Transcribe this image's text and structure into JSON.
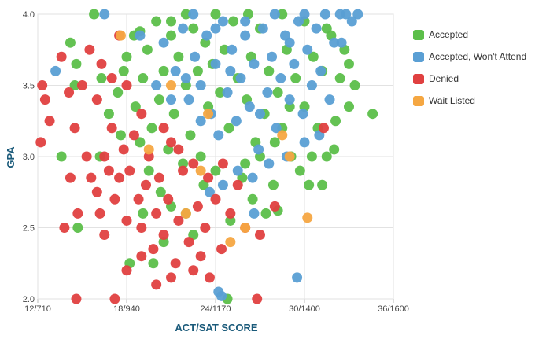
{
  "chart_data": {
    "type": "scatter",
    "title": "",
    "xlabel": "ACT/SAT SCORE",
    "ylabel": "GPA",
    "x_ticks": [
      {
        "value": 12,
        "label": "12/710"
      },
      {
        "value": 18,
        "label": "18/940"
      },
      {
        "value": 24,
        "label": "24/1170"
      },
      {
        "value": 30,
        "label": "30/1400"
      },
      {
        "value": 36,
        "label": "36/1600"
      }
    ],
    "y_ticks": [
      {
        "value": 2.0,
        "label": "2.0"
      },
      {
        "value": 2.5,
        "label": "2.5"
      },
      {
        "value": 3.0,
        "label": "3.0"
      },
      {
        "value": 3.5,
        "label": "3.5"
      },
      {
        "value": 4.0,
        "label": "4.0"
      }
    ],
    "xlim": [
      12,
      36
    ],
    "ylim": [
      2.0,
      4.0
    ],
    "grid": true,
    "legend_position": "right",
    "series": [
      {
        "name": "Accepted",
        "color": "#5cbf4a",
        "points": [
          [
            15.8,
            4.0
          ],
          [
            14.2,
            3.8
          ],
          [
            14.6,
            3.65
          ],
          [
            16.3,
            3.55
          ],
          [
            14.5,
            3.5
          ],
          [
            13.6,
            3.0
          ],
          [
            14.7,
            2.5
          ],
          [
            16.2,
            3.0
          ],
          [
            16.8,
            3.3
          ],
          [
            17.4,
            3.45
          ],
          [
            17.8,
            3.6
          ],
          [
            18.0,
            3.7
          ],
          [
            18.5,
            3.85
          ],
          [
            18.6,
            3.35
          ],
          [
            18.9,
            3.1
          ],
          [
            19.1,
            3.55
          ],
          [
            19.4,
            3.75
          ],
          [
            19.7,
            3.2
          ],
          [
            20.0,
            3.95
          ],
          [
            20.2,
            3.4
          ],
          [
            20.5,
            3.6
          ],
          [
            20.8,
            3.05
          ],
          [
            21.0,
            3.85
          ],
          [
            21.2,
            3.3
          ],
          [
            21.5,
            3.7
          ],
          [
            21.8,
            2.95
          ],
          [
            22.0,
            3.5
          ],
          [
            22.3,
            3.15
          ],
          [
            22.5,
            3.9
          ],
          [
            22.8,
            3.6
          ],
          [
            23.0,
            3.0
          ],
          [
            23.3,
            3.8
          ],
          [
            23.5,
            3.35
          ],
          [
            23.8,
            3.65
          ],
          [
            24.0,
            2.9
          ],
          [
            24.3,
            3.45
          ],
          [
            24.6,
            3.75
          ],
          [
            24.9,
            3.2
          ],
          [
            25.2,
            3.95
          ],
          [
            25.5,
            3.55
          ],
          [
            25.8,
            2.85
          ],
          [
            26.1,
            3.4
          ],
          [
            26.4,
            3.7
          ],
          [
            26.7,
            3.1
          ],
          [
            27.0,
            3.9
          ],
          [
            27.3,
            3.3
          ],
          [
            27.6,
            3.6
          ],
          [
            27.9,
            2.8
          ],
          [
            28.2,
            3.45
          ],
          [
            28.5,
            3.2
          ],
          [
            28.8,
            3.75
          ],
          [
            29.1,
            3.0
          ],
          [
            29.4,
            3.55
          ],
          [
            29.7,
            2.9
          ],
          [
            30.0,
            3.35
          ],
          [
            30.3,
            2.8
          ],
          [
            30.6,
            3.7
          ],
          [
            30.9,
            3.2
          ],
          [
            31.2,
            3.6
          ],
          [
            31.5,
            3.0
          ],
          [
            31.8,
            3.85
          ],
          [
            32.1,
            3.25
          ],
          [
            32.4,
            3.55
          ],
          [
            32.7,
            3.75
          ],
          [
            33.0,
            3.35
          ],
          [
            33.4,
            3.5
          ],
          [
            34.6,
            3.3
          ],
          [
            22.0,
            2.6
          ],
          [
            21.0,
            2.65
          ],
          [
            20.5,
            2.4
          ],
          [
            25.0,
            2.55
          ],
          [
            24.8,
            2.0
          ],
          [
            26.5,
            2.7
          ],
          [
            27.4,
            2.6
          ],
          [
            28.2,
            2.62
          ],
          [
            19.5,
            2.9
          ],
          [
            20.3,
            2.75
          ],
          [
            22.5,
            2.45
          ],
          [
            23.2,
            2.8
          ],
          [
            26.0,
            2.95
          ],
          [
            27.0,
            3.0
          ],
          [
            28.0,
            3.1
          ],
          [
            29.0,
            3.35
          ],
          [
            30.5,
            3.0
          ],
          [
            31.2,
            2.8
          ],
          [
            32.0,
            3.05
          ],
          [
            33.0,
            3.65
          ],
          [
            31.5,
            3.9
          ],
          [
            30.0,
            3.95
          ],
          [
            28.5,
            4.0
          ],
          [
            26.2,
            4.0
          ],
          [
            24.0,
            4.0
          ],
          [
            22.0,
            4.0
          ],
          [
            21.0,
            3.95
          ],
          [
            19.8,
            2.25
          ],
          [
            18.2,
            2.25
          ],
          [
            18.9,
            3.88
          ],
          [
            17.6,
            3.15
          ],
          [
            19.1,
            2.6
          ]
        ]
      },
      {
        "name": "Accepted, Won't Attend",
        "color": "#5a9fd4",
        "points": [
          [
            16.5,
            4.0
          ],
          [
            13.2,
            3.6
          ],
          [
            18.9,
            3.85
          ],
          [
            20.5,
            3.8
          ],
          [
            21.3,
            3.6
          ],
          [
            21.8,
            3.9
          ],
          [
            22.2,
            3.4
          ],
          [
            22.6,
            3.7
          ],
          [
            23.0,
            3.5
          ],
          [
            23.4,
            3.85
          ],
          [
            23.7,
            3.3
          ],
          [
            24.0,
            3.65
          ],
          [
            24.2,
            3.15
          ],
          [
            24.5,
            3.95
          ],
          [
            24.8,
            3.45
          ],
          [
            25.1,
            3.75
          ],
          [
            25.4,
            3.25
          ],
          [
            25.7,
            3.55
          ],
          [
            26.0,
            3.85
          ],
          [
            26.3,
            3.35
          ],
          [
            26.6,
            3.65
          ],
          [
            26.9,
            3.05
          ],
          [
            27.2,
            3.9
          ],
          [
            27.5,
            3.45
          ],
          [
            27.8,
            3.7
          ],
          [
            28.1,
            3.2
          ],
          [
            28.4,
            3.55
          ],
          [
            28.7,
            3.85
          ],
          [
            29.0,
            3.4
          ],
          [
            29.3,
            3.65
          ],
          [
            29.6,
            3.95
          ],
          [
            29.9,
            3.3
          ],
          [
            30.2,
            3.75
          ],
          [
            30.5,
            3.5
          ],
          [
            30.8,
            3.9
          ],
          [
            31.1,
            3.6
          ],
          [
            31.4,
            4.0
          ],
          [
            31.7,
            3.4
          ],
          [
            32.0,
            3.8
          ],
          [
            32.4,
            4.0
          ],
          [
            32.8,
            4.0
          ],
          [
            33.2,
            3.95
          ],
          [
            33.6,
            4.0
          ],
          [
            32.5,
            3.8
          ],
          [
            31.0,
            3.15
          ],
          [
            30.0,
            3.1
          ],
          [
            28.8,
            3.0
          ],
          [
            27.6,
            2.95
          ],
          [
            26.5,
            2.85
          ],
          [
            25.5,
            2.9
          ],
          [
            24.5,
            2.8
          ],
          [
            23.6,
            2.75
          ],
          [
            24.2,
            2.05
          ],
          [
            24.4,
            2.02
          ],
          [
            29.5,
            2.15
          ],
          [
            26.6,
            2.6
          ],
          [
            20.0,
            3.5
          ],
          [
            21.0,
            3.4
          ],
          [
            22.0,
            3.55
          ],
          [
            23.0,
            3.25
          ],
          [
            25.0,
            3.6
          ],
          [
            27.0,
            3.3
          ],
          [
            29.0,
            3.8
          ],
          [
            24.0,
            3.9
          ],
          [
            26.0,
            3.95
          ],
          [
            28.0,
            4.0
          ],
          [
            30.0,
            4.0
          ],
          [
            22.5,
            4.0
          ]
        ]
      },
      {
        "name": "Denied",
        "color": "#e04040",
        "points": [
          [
            12.3,
            3.5
          ],
          [
            12.5,
            3.4
          ],
          [
            12.8,
            3.25
          ],
          [
            12.2,
            3.1
          ],
          [
            13.6,
            3.7
          ],
          [
            14.1,
            3.45
          ],
          [
            14.5,
            3.2
          ],
          [
            15.0,
            3.5
          ],
          [
            15.3,
            3.0
          ],
          [
            15.6,
            2.85
          ],
          [
            15.5,
            3.75
          ],
          [
            16.0,
            2.75
          ],
          [
            16.2,
            2.6
          ],
          [
            16.5,
            3.0
          ],
          [
            16.8,
            2.9
          ],
          [
            17.0,
            3.2
          ],
          [
            17.2,
            2.7
          ],
          [
            17.5,
            2.85
          ],
          [
            17.8,
            3.05
          ],
          [
            18.0,
            2.55
          ],
          [
            18.2,
            2.9
          ],
          [
            18.5,
            3.15
          ],
          [
            18.8,
            2.7
          ],
          [
            19.0,
            2.5
          ],
          [
            19.3,
            2.8
          ],
          [
            19.5,
            3.0
          ],
          [
            19.8,
            2.35
          ],
          [
            20.0,
            2.6
          ],
          [
            20.2,
            2.85
          ],
          [
            20.5,
            2.45
          ],
          [
            20.8,
            2.7
          ],
          [
            21.0,
            3.1
          ],
          [
            21.3,
            2.25
          ],
          [
            21.5,
            2.55
          ],
          [
            21.8,
            2.9
          ],
          [
            22.2,
            2.4
          ],
          [
            22.5,
            2.2
          ],
          [
            22.8,
            2.65
          ],
          [
            23.0,
            2.3
          ],
          [
            23.3,
            2.5
          ],
          [
            23.6,
            2.15
          ],
          [
            24.0,
            2.7
          ],
          [
            24.4,
            2.35
          ],
          [
            25.0,
            2.6
          ],
          [
            25.5,
            2.8
          ],
          [
            26.0,
            2.5
          ],
          [
            27.0,
            2.45
          ],
          [
            28.0,
            2.65
          ],
          [
            14.6,
            2.0
          ],
          [
            17.2,
            2.0
          ],
          [
            26.8,
            2.0
          ],
          [
            13.8,
            2.5
          ],
          [
            16.5,
            2.45
          ],
          [
            18.0,
            2.2
          ],
          [
            19.0,
            2.3
          ],
          [
            20.0,
            2.1
          ],
          [
            21.0,
            2.15
          ],
          [
            14.2,
            2.85
          ],
          [
            14.7,
            2.6
          ],
          [
            31.3,
            3.2
          ],
          [
            16.0,
            3.4
          ],
          [
            17.0,
            3.55
          ],
          [
            18.0,
            3.5
          ],
          [
            19.0,
            3.3
          ],
          [
            20.5,
            3.2
          ],
          [
            21.5,
            3.05
          ],
          [
            22.5,
            2.95
          ],
          [
            23.5,
            2.85
          ],
          [
            24.5,
            2.95
          ],
          [
            17.5,
            3.85
          ],
          [
            16.3,
            3.65
          ]
        ]
      },
      {
        "name": "Wait Listed",
        "color": "#f5a742",
        "points": [
          [
            17.6,
            3.85
          ],
          [
            21.0,
            3.5
          ],
          [
            23.5,
            3.3
          ],
          [
            25.0,
            2.4
          ],
          [
            26.0,
            2.5
          ],
          [
            29.0,
            3.0
          ],
          [
            30.2,
            2.57
          ],
          [
            22.0,
            2.6
          ],
          [
            28.5,
            3.15
          ],
          [
            19.5,
            3.05
          ],
          [
            23.0,
            2.9
          ]
        ]
      }
    ]
  }
}
